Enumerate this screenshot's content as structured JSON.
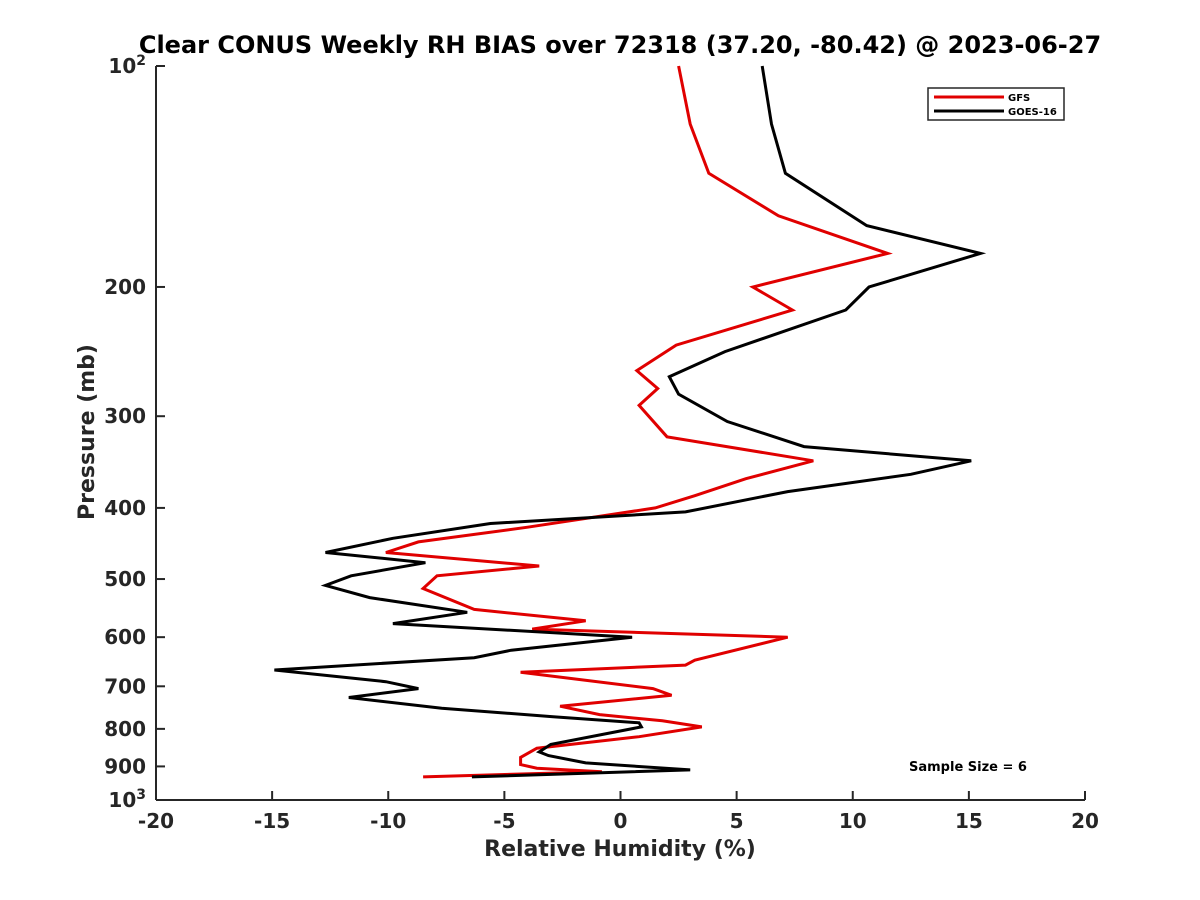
{
  "chart_data": {
    "type": "line",
    "title": "Clear CONUS Weekly RH BIAS over 72318 (37.20, -80.42) @ 2023-06-27",
    "xlabel": "Relative Humidity (%)",
    "ylabel": "Pressure (mb)",
    "xlim": [
      -20,
      20
    ],
    "ylim": [
      100,
      1000
    ],
    "y_scale": "log",
    "y_reversed": true,
    "x_ticks": [
      {
        "value": -20,
        "label": "-20"
      },
      {
        "value": -15,
        "label": "-15"
      },
      {
        "value": -10,
        "label": "-10"
      },
      {
        "value": -5,
        "label": "-5"
      },
      {
        "value": 0,
        "label": "0"
      },
      {
        "value": 5,
        "label": "5"
      },
      {
        "value": 10,
        "label": "10"
      },
      {
        "value": 15,
        "label": "15"
      },
      {
        "value": 20,
        "label": "20"
      }
    ],
    "y_ticks": [
      {
        "value": 100,
        "label": "10",
        "sup": "2"
      },
      {
        "value": 200,
        "label": "200"
      },
      {
        "value": 300,
        "label": "300"
      },
      {
        "value": 400,
        "label": "400"
      },
      {
        "value": 500,
        "label": "500"
      },
      {
        "value": 600,
        "label": "600"
      },
      {
        "value": 700,
        "label": "700"
      },
      {
        "value": 800,
        "label": "800"
      },
      {
        "value": 900,
        "label": "900"
      },
      {
        "value": 1000,
        "label": "10",
        "sup": "3"
      }
    ],
    "grid": false,
    "legend_position": "top-right",
    "annotation": "Sample Size = 6",
    "series": [
      {
        "name": "GFS",
        "color": "#e00000",
        "points": [
          [
            2.5,
            100
          ],
          [
            3.0,
            120
          ],
          [
            3.8,
            140
          ],
          [
            6.8,
            160
          ],
          [
            11.5,
            180
          ],
          [
            5.7,
            200
          ],
          [
            7.4,
            215
          ],
          [
            2.4,
            240
          ],
          [
            0.7,
            260
          ],
          [
            1.6,
            275
          ],
          [
            0.8,
            290
          ],
          [
            2.0,
            320
          ],
          [
            8.3,
            345
          ],
          [
            5.4,
            365
          ],
          [
            3.2,
            385
          ],
          [
            1.5,
            400
          ],
          [
            -4.0,
            425
          ],
          [
            -8.7,
            445
          ],
          [
            -10.1,
            460
          ],
          [
            -3.5,
            480
          ],
          [
            -7.9,
            495
          ],
          [
            -8.5,
            515
          ],
          [
            -6.3,
            550
          ],
          [
            -1.5,
            570
          ],
          [
            -3.8,
            585
          ],
          [
            7.2,
            600
          ],
          [
            3.2,
            645
          ],
          [
            2.8,
            655
          ],
          [
            -4.3,
            670
          ],
          [
            1.4,
            705
          ],
          [
            2.2,
            720
          ],
          [
            -2.6,
            745
          ],
          [
            -0.9,
            765
          ],
          [
            1.8,
            780
          ],
          [
            3.5,
            795
          ],
          [
            0.8,
            820
          ],
          [
            -3.6,
            850
          ],
          [
            -4.3,
            875
          ],
          [
            -4.3,
            895
          ],
          [
            -3.6,
            905
          ],
          [
            -0.8,
            915
          ],
          [
            -8.5,
            930
          ]
        ]
      },
      {
        "name": "GOES-16",
        "color": "#000000",
        "points": [
          [
            6.1,
            100
          ],
          [
            6.5,
            120
          ],
          [
            7.1,
            140
          ],
          [
            10.6,
            165
          ],
          [
            15.5,
            180
          ],
          [
            10.7,
            200
          ],
          [
            9.7,
            215
          ],
          [
            4.5,
            245
          ],
          [
            2.1,
            265
          ],
          [
            2.5,
            280
          ],
          [
            4.6,
            305
          ],
          [
            7.9,
            330
          ],
          [
            15.1,
            345
          ],
          [
            12.5,
            360
          ],
          [
            7.2,
            380
          ],
          [
            2.8,
            405
          ],
          [
            -5.6,
            420
          ],
          [
            -9.8,
            440
          ],
          [
            -12.7,
            460
          ],
          [
            -8.4,
            475
          ],
          [
            -11.6,
            495
          ],
          [
            -12.7,
            510
          ],
          [
            -10.8,
            530
          ],
          [
            -6.6,
            555
          ],
          [
            -9.8,
            575
          ],
          [
            0.5,
            600
          ],
          [
            -4.7,
            625
          ],
          [
            -6.3,
            640
          ],
          [
            -14.9,
            665
          ],
          [
            -10.1,
            690
          ],
          [
            -8.7,
            705
          ],
          [
            -11.7,
            725
          ],
          [
            -7.7,
            750
          ],
          [
            -2.9,
            770
          ],
          [
            0.8,
            785
          ],
          [
            0.9,
            795
          ],
          [
            -3.0,
            840
          ],
          [
            -3.5,
            860
          ],
          [
            -3.1,
            870
          ],
          [
            -1.5,
            890
          ],
          [
            3.0,
            910
          ],
          [
            -6.4,
            930
          ]
        ]
      }
    ]
  }
}
